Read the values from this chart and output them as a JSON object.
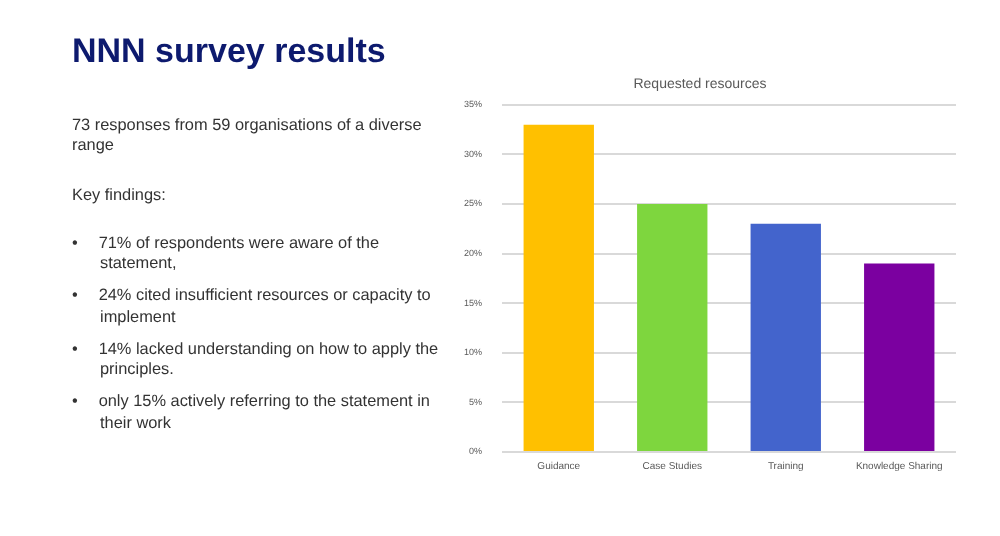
{
  "chart_data": {
    "type": "bar",
    "title": "NNN survey results",
    "subtitle": "Requested resources",
    "annotations": [
      "73 responses from 59 organisations of a diverse range",
      "Key findings:",
      "•  71% of respondents were aware of the statement,",
      "•  24% cited insufficient resources or capacity to implement",
      "•  14% lacked understanding on how to apply the principles.",
      "•  only 15% actively referring to the statement in their work"
    ],
    "categories": [
      "Guidance",
      "Case Studies",
      "Training",
      "Knowledge Sharing"
    ],
    "values": [
      33,
      25,
      23,
      19
    ],
    "colors": [
      "#ffc000",
      "#7ed63e",
      "#4364cc",
      "#7b00a0"
    ],
    "ylim": [
      0,
      35
    ],
    "yticks": [
      {
        "value": 0,
        "label": "0%"
      },
      {
        "value": 5,
        "label": "5%"
      },
      {
        "value": 10,
        "label": "10%"
      },
      {
        "value": 15,
        "label": "15%"
      },
      {
        "value": 20,
        "label": "20%"
      },
      {
        "value": 25,
        "label": "25%"
      },
      {
        "value": 30,
        "label": "30%"
      },
      {
        "value": 35,
        "label": "35%"
      }
    ],
    "grid": "y"
  }
}
